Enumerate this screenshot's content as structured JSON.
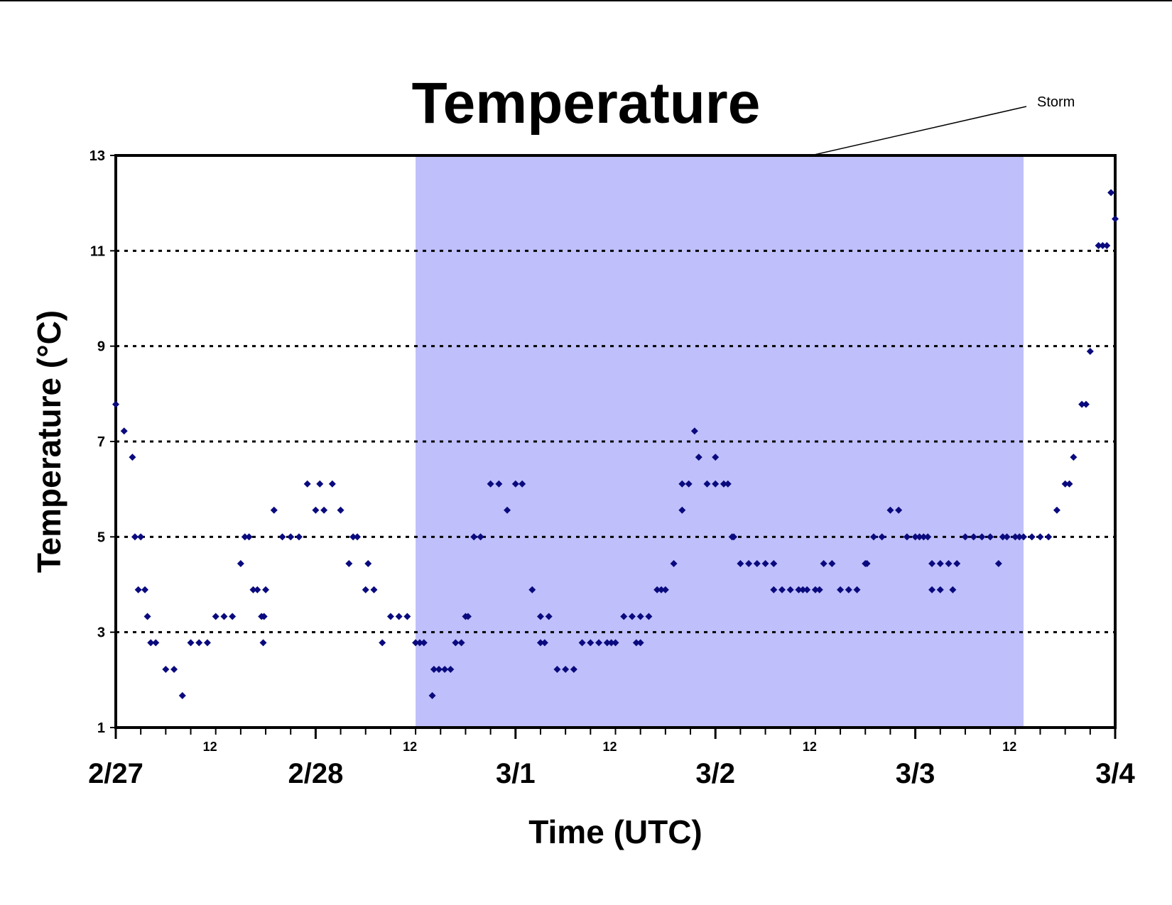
{
  "chart_data": {
    "type": "scatter",
    "title": "Temperature",
    "xlabel": "Time (UTC)",
    "ylabel": "Temperature (°C)",
    "x_unit": "hours",
    "xlim": [
      0,
      120
    ],
    "ylim": [
      1,
      13
    ],
    "y_ticks": [
      1,
      3,
      5,
      7,
      9,
      11,
      13
    ],
    "gridlines_y": [
      3,
      5,
      7,
      9,
      11
    ],
    "grid_style": "dotted horizontal",
    "x_major_ticks": [
      {
        "x": 0,
        "label": "2/27"
      },
      {
        "x": 24,
        "label": "2/28"
      },
      {
        "x": 48,
        "label": "3/1"
      },
      {
        "x": 72,
        "label": "3/2"
      },
      {
        "x": 96,
        "label": "3/3"
      },
      {
        "x": 120,
        "label": "3/4"
      }
    ],
    "x_minor_labels": [
      {
        "x": 12,
        "label": "12"
      },
      {
        "x": 36,
        "label": "12"
      },
      {
        "x": 60,
        "label": "12"
      },
      {
        "x": 84,
        "label": "12"
      },
      {
        "x": 108,
        "label": "12"
      }
    ],
    "shaded_region": {
      "x_start": 36,
      "x_end": 109,
      "label": "Storm",
      "color": "#bfbffb"
    },
    "annotation": {
      "text": "Storm"
    },
    "marker_color": "#0a0a7e",
    "series": [
      {
        "marker": "diamond",
        "points": [
          [
            0,
            7.78
          ],
          [
            1,
            7.22
          ],
          [
            2,
            6.67
          ],
          [
            2.3,
            5
          ],
          [
            3,
            5
          ],
          [
            2.7,
            3.89
          ],
          [
            3.5,
            3.89
          ],
          [
            3.8,
            3.33
          ],
          [
            4.2,
            2.78
          ],
          [
            4.8,
            2.78
          ],
          [
            6,
            2.22
          ],
          [
            7,
            2.22
          ],
          [
            8,
            1.67
          ],
          [
            9,
            2.78
          ],
          [
            10,
            2.78
          ],
          [
            11,
            2.78
          ],
          [
            12,
            3.33
          ],
          [
            13,
            3.33
          ],
          [
            14,
            3.33
          ],
          [
            15,
            4.44
          ],
          [
            15.5,
            5
          ],
          [
            16,
            5
          ],
          [
            16.5,
            3.89
          ],
          [
            17,
            3.89
          ],
          [
            17.5,
            3.33
          ],
          [
            17.8,
            3.33
          ],
          [
            17.7,
            2.78
          ],
          [
            18,
            3.89
          ],
          [
            19,
            5.56
          ],
          [
            20,
            5
          ],
          [
            21,
            5
          ],
          [
            22,
            5
          ],
          [
            23,
            6.11
          ],
          [
            24,
            5.56
          ],
          [
            24.5,
            6.11
          ],
          [
            25,
            5.56
          ],
          [
            26,
            6.11
          ],
          [
            27,
            5.56
          ],
          [
            28,
            4.44
          ],
          [
            28.5,
            5
          ],
          [
            29,
            5
          ],
          [
            30,
            3.89
          ],
          [
            30.3,
            4.44
          ],
          [
            31,
            3.89
          ],
          [
            32,
            2.78
          ],
          [
            33,
            3.33
          ],
          [
            34,
            3.33
          ],
          [
            35,
            3.33
          ],
          [
            36,
            2.78
          ],
          [
            36.5,
            2.78
          ],
          [
            37,
            2.78
          ],
          [
            38,
            1.67
          ],
          [
            38.2,
            2.22
          ],
          [
            38.8,
            2.22
          ],
          [
            39.5,
            2.22
          ],
          [
            40.2,
            2.22
          ],
          [
            40.8,
            2.78
          ],
          [
            41.5,
            2.78
          ],
          [
            42,
            3.33
          ],
          [
            42.3,
            3.33
          ],
          [
            43,
            5
          ],
          [
            43.8,
            5
          ],
          [
            45,
            6.11
          ],
          [
            46,
            6.11
          ],
          [
            47,
            5.56
          ],
          [
            48,
            6.11
          ],
          [
            48.8,
            6.11
          ],
          [
            50,
            3.89
          ],
          [
            51,
            3.33
          ],
          [
            51,
            2.78
          ],
          [
            51.5,
            2.78
          ],
          [
            52,
            3.33
          ],
          [
            53,
            2.22
          ],
          [
            54,
            2.22
          ],
          [
            55,
            2.22
          ],
          [
            56,
            2.78
          ],
          [
            57,
            2.78
          ],
          [
            58,
            2.78
          ],
          [
            59,
            2.78
          ],
          [
            59.5,
            2.78
          ],
          [
            60,
            2.78
          ],
          [
            61,
            3.33
          ],
          [
            62,
            3.33
          ],
          [
            62.5,
            2.78
          ],
          [
            63,
            2.78
          ],
          [
            63,
            3.33
          ],
          [
            64,
            3.33
          ],
          [
            65,
            3.89
          ],
          [
            65.5,
            3.89
          ],
          [
            66,
            3.89
          ],
          [
            67,
            4.44
          ],
          [
            68,
            5.56
          ],
          [
            68,
            6.11
          ],
          [
            68.8,
            6.11
          ],
          [
            69.5,
            7.22
          ],
          [
            70,
            6.67
          ],
          [
            71,
            6.11
          ],
          [
            72,
            6.67
          ],
          [
            72,
            6.11
          ],
          [
            73,
            6.11
          ],
          [
            73.5,
            6.11
          ],
          [
            74,
            5
          ],
          [
            74.2,
            5
          ],
          [
            75,
            4.44
          ],
          [
            76,
            4.44
          ],
          [
            77,
            4.44
          ],
          [
            78,
            4.44
          ],
          [
            79,
            4.44
          ],
          [
            79,
            3.89
          ],
          [
            80,
            3.89
          ],
          [
            81,
            3.89
          ],
          [
            82,
            3.89
          ],
          [
            82.5,
            3.89
          ],
          [
            83,
            3.89
          ],
          [
            84,
            3.89
          ],
          [
            84.5,
            3.89
          ],
          [
            85,
            4.44
          ],
          [
            86,
            4.44
          ],
          [
            87,
            3.89
          ],
          [
            88,
            3.89
          ],
          [
            89,
            3.89
          ],
          [
            90,
            4.44
          ],
          [
            90.2,
            4.44
          ],
          [
            91,
            5
          ],
          [
            92,
            5
          ],
          [
            93,
            5.56
          ],
          [
            94,
            5.56
          ],
          [
            95,
            5
          ],
          [
            96,
            5
          ],
          [
            96.5,
            5
          ],
          [
            97,
            5
          ],
          [
            97.5,
            5
          ],
          [
            98,
            4.44
          ],
          [
            98,
            3.89
          ],
          [
            99,
            3.89
          ],
          [
            99,
            4.44
          ],
          [
            100,
            4.44
          ],
          [
            100.5,
            3.89
          ],
          [
            101,
            4.44
          ],
          [
            102,
            5
          ],
          [
            103,
            5
          ],
          [
            104,
            5
          ],
          [
            105,
            5
          ],
          [
            106,
            4.44
          ],
          [
            106.5,
            5
          ],
          [
            107,
            5
          ],
          [
            108,
            5
          ],
          [
            108.5,
            5
          ],
          [
            109,
            5
          ],
          [
            110,
            5
          ],
          [
            111,
            5
          ],
          [
            112,
            5
          ],
          [
            113,
            5.56
          ],
          [
            114,
            6.11
          ],
          [
            114.5,
            6.11
          ],
          [
            115,
            6.67
          ],
          [
            116,
            7.78
          ],
          [
            116.5,
            7.78
          ],
          [
            117,
            8.89
          ],
          [
            118,
            11.11
          ],
          [
            118.5,
            11.11
          ],
          [
            119,
            11.11
          ],
          [
            119.5,
            12.22
          ],
          [
            120,
            11.67
          ]
        ]
      }
    ]
  }
}
